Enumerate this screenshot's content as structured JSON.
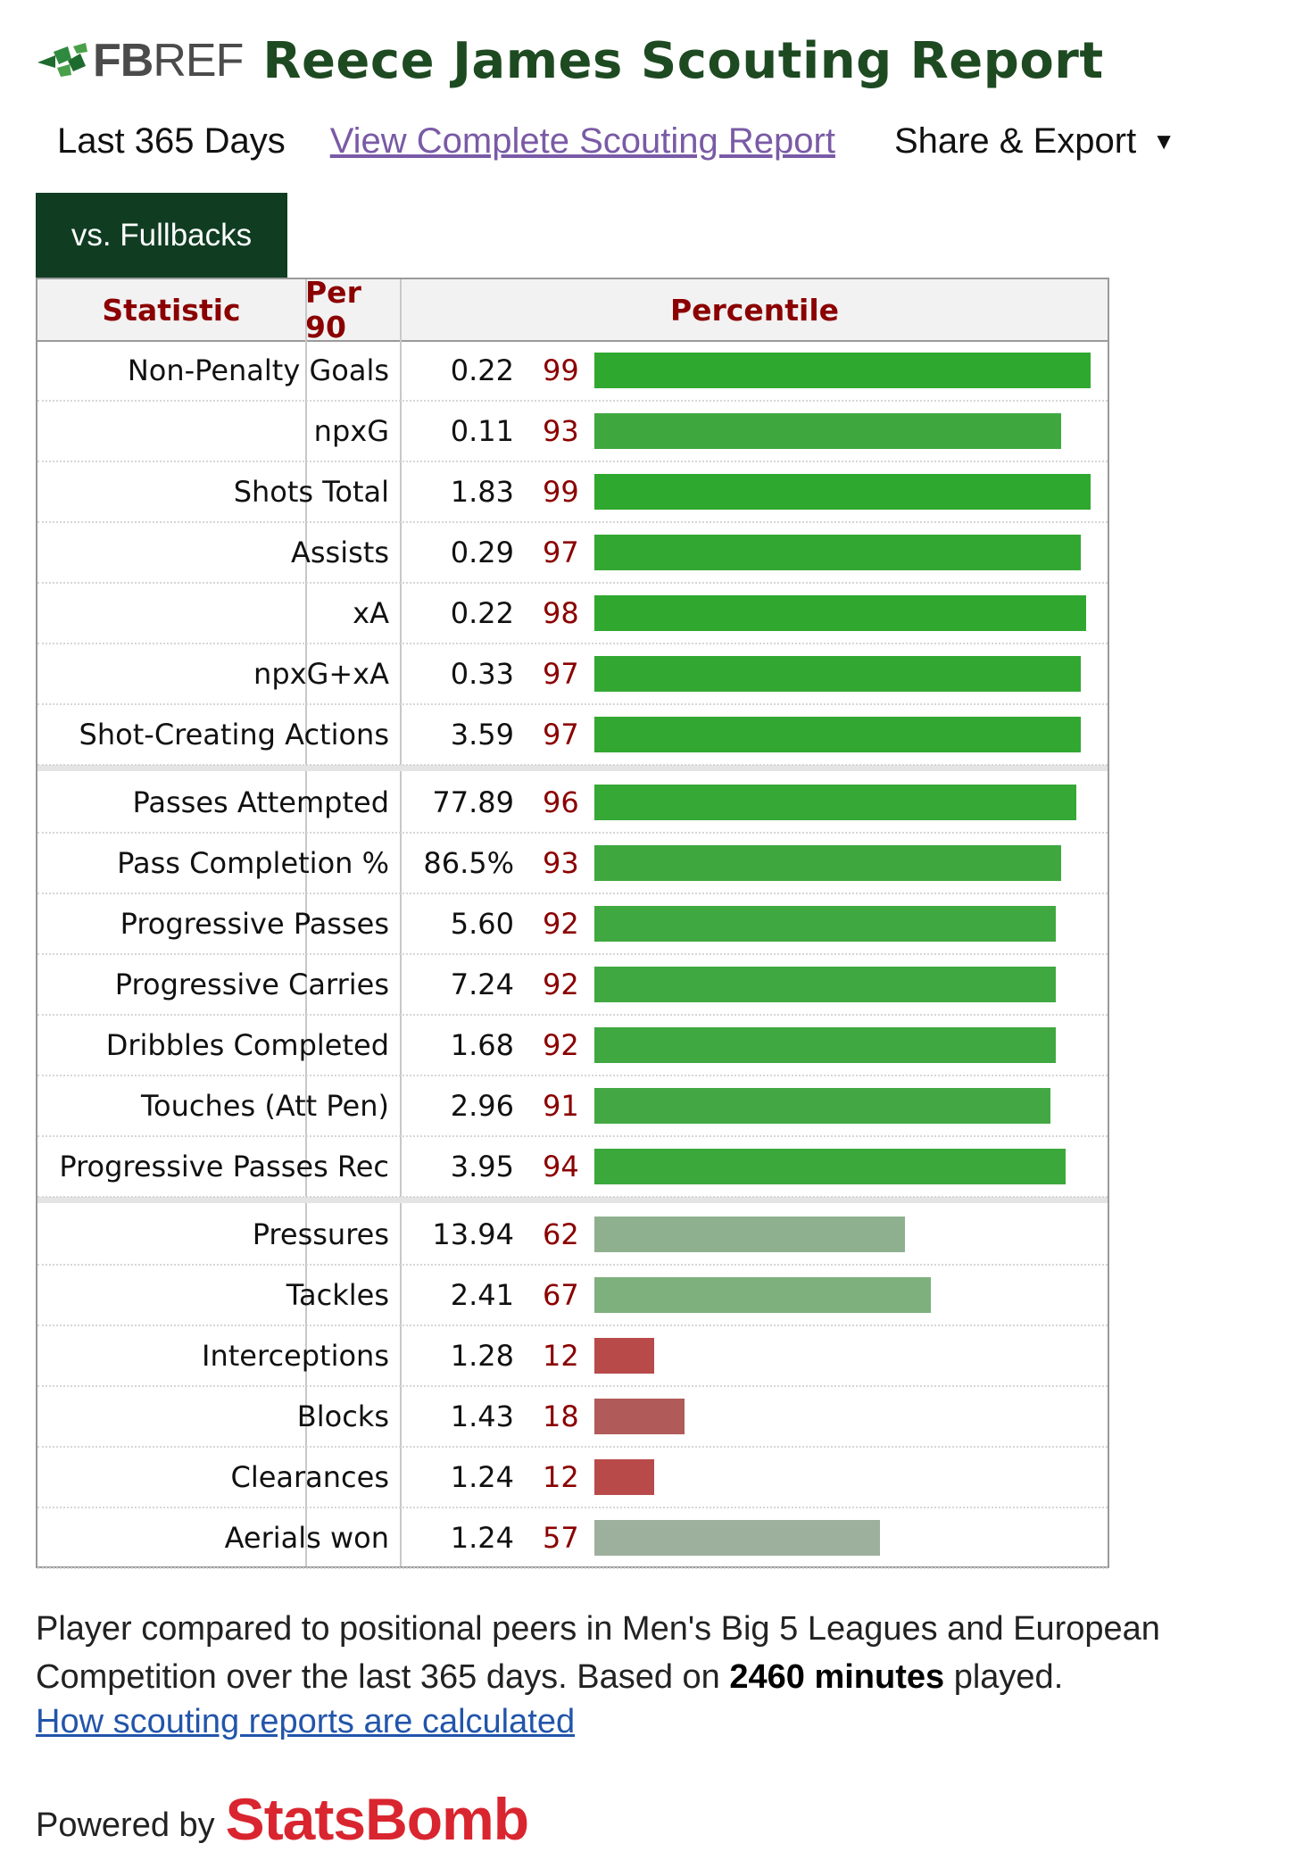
{
  "header": {
    "logo_bold": "FB",
    "logo_light": "REF",
    "title": "Reece James Scouting Report"
  },
  "subnav": {
    "period": "Last 365 Days",
    "complete_link": "View Complete Scouting Report",
    "share_label": "Share & Export",
    "share_caret": "▼"
  },
  "tab": {
    "label": "vs. Fullbacks"
  },
  "table": {
    "col_statistic": "Statistic",
    "col_per90": "Per 90",
    "col_percentile": "Percentile",
    "rows": [
      {
        "stat": "Non-Penalty Goals",
        "per90": "0.22",
        "pct": "99",
        "pct_value": 99,
        "color": "#2fa82f"
      },
      {
        "stat": "npxG",
        "per90": "0.11",
        "pct": "93",
        "pct_value": 93,
        "color": "#3ea83e"
      },
      {
        "stat": "Shots Total",
        "per90": "1.83",
        "pct": "99",
        "pct_value": 99,
        "color": "#2fa82f"
      },
      {
        "stat": "Assists",
        "per90": "0.29",
        "pct": "97",
        "pct_value": 97,
        "color": "#32a832"
      },
      {
        "stat": "xA",
        "per90": "0.22",
        "pct": "98",
        "pct_value": 98,
        "color": "#30a830"
      },
      {
        "stat": "npxG+xA",
        "per90": "0.33",
        "pct": "97",
        "pct_value": 97,
        "color": "#32a832"
      },
      {
        "stat": "Shot-Creating Actions",
        "per90": "3.59",
        "pct": "97",
        "pct_value": 97,
        "color": "#32a832"
      },
      {
        "stat": "Passes Attempted",
        "per90": "77.89",
        "pct": "96",
        "pct_value": 96,
        "color": "#35a835"
      },
      {
        "stat": "Pass Completion %",
        "per90": "86.5%",
        "pct": "93",
        "pct_value": 93,
        "color": "#3ea83e"
      },
      {
        "stat": "Progressive Passes",
        "per90": "5.60",
        "pct": "92",
        "pct_value": 92,
        "color": "#40a840"
      },
      {
        "stat": "Progressive Carries",
        "per90": "7.24",
        "pct": "92",
        "pct_value": 92,
        "color": "#40a840"
      },
      {
        "stat": "Dribbles Completed",
        "per90": "1.68",
        "pct": "92",
        "pct_value": 92,
        "color": "#40a840"
      },
      {
        "stat": "Touches (Att Pen)",
        "per90": "2.96",
        "pct": "91",
        "pct_value": 91,
        "color": "#43a843"
      },
      {
        "stat": "Progressive Passes Rec",
        "per90": "3.95",
        "pct": "94",
        "pct_value": 94,
        "color": "#3ba83b"
      },
      {
        "stat": "Pressures",
        "per90": "13.94",
        "pct": "62",
        "pct_value": 62,
        "color": "#8fb08f"
      },
      {
        "stat": "Tackles",
        "per90": "2.41",
        "pct": "67",
        "pct_value": 67,
        "color": "#7eb07e"
      },
      {
        "stat": "Interceptions",
        "per90": "1.28",
        "pct": "12",
        "pct_value": 12,
        "color": "#b84a4a"
      },
      {
        "stat": "Blocks",
        "per90": "1.43",
        "pct": "18",
        "pct_value": 18,
        "color": "#b05a5a"
      },
      {
        "stat": "Clearances",
        "per90": "1.24",
        "pct": "12",
        "pct_value": 12,
        "color": "#b84a4a"
      },
      {
        "stat": "Aerials won",
        "per90": "1.24",
        "pct": "57",
        "pct_value": 57,
        "color": "#9db09d"
      }
    ]
  },
  "footnote": {
    "text_a": "Player compared to positional peers in Men's Big 5 Leagues and European Competition over the last 365 days. Based on ",
    "minutes": "2460 minutes",
    "text_b": " played.",
    "how_link": "How scouting reports are calculated"
  },
  "powered": {
    "label": "Powered by",
    "brand": "StatsBomb"
  }
}
